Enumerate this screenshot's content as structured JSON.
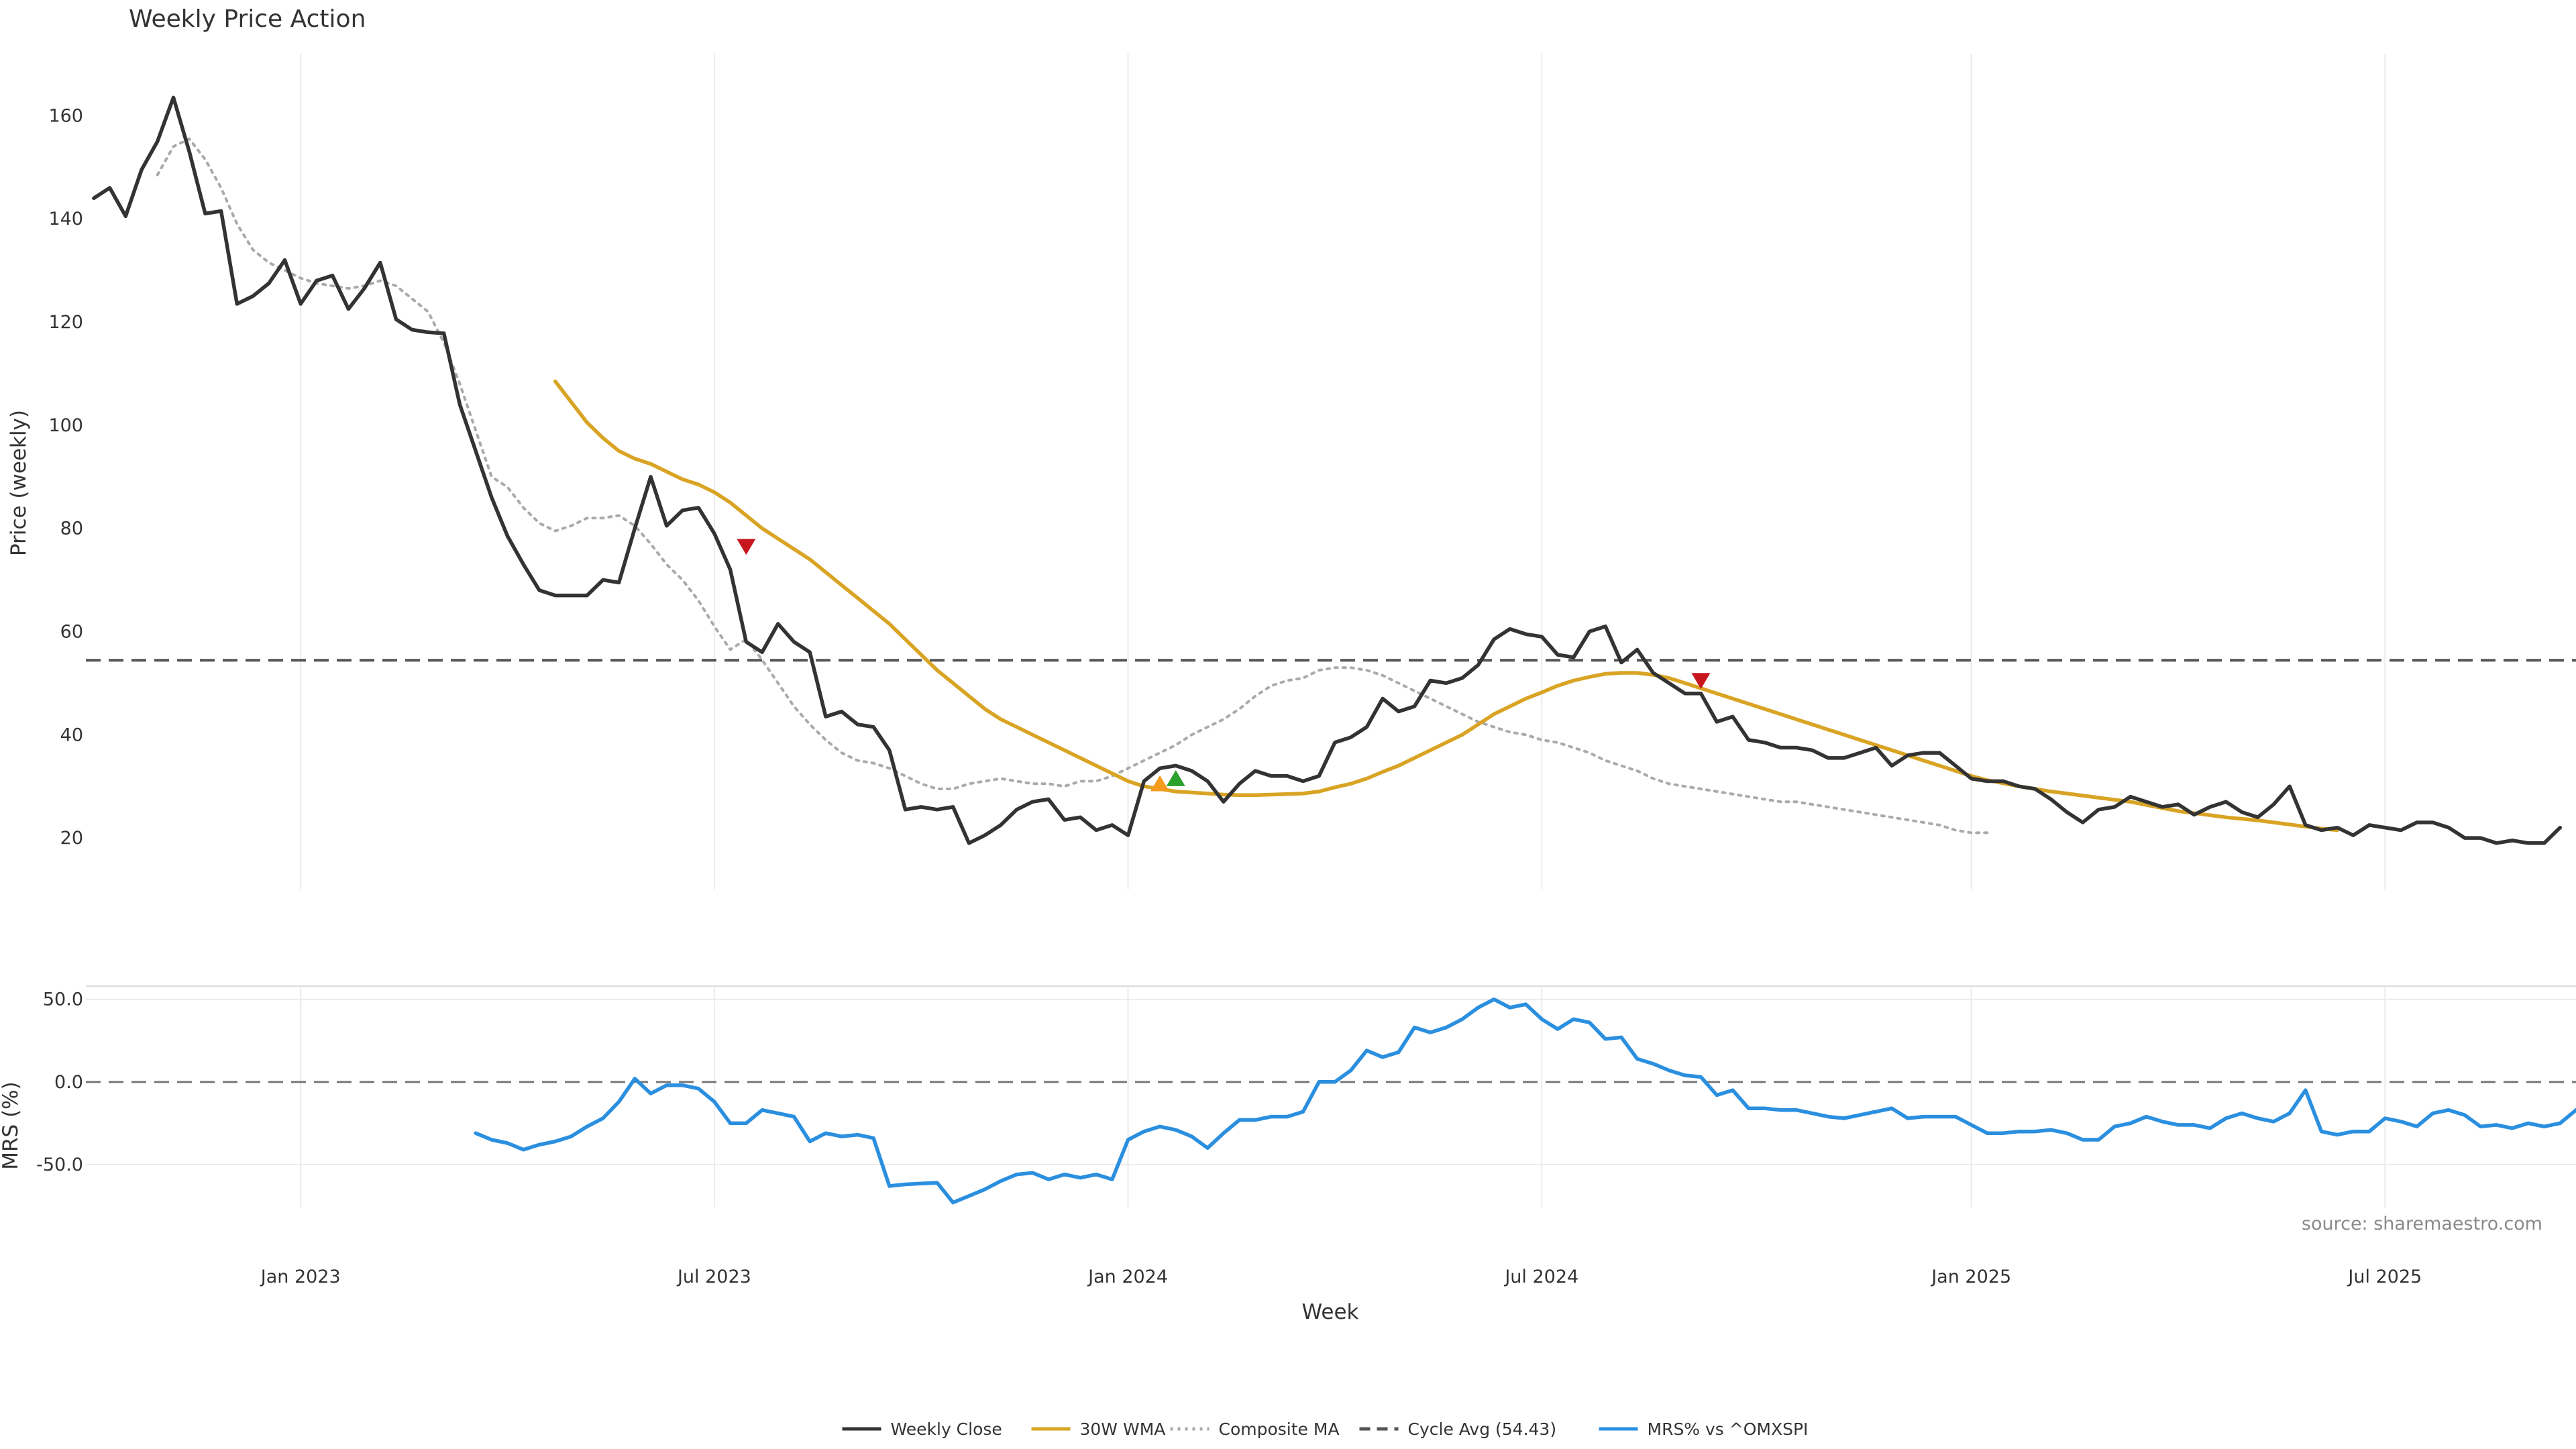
{
  "chart_data": {
    "type": "line",
    "title": "Weekly Price Action",
    "xlabel": "Week",
    "x_ticks": [
      {
        "label": "Jan 2023",
        "week": 13
      },
      {
        "label": "Jul 2023",
        "week": 39
      },
      {
        "label": "Jan 2024",
        "week": 65
      },
      {
        "label": "Jul 2024",
        "week": 91
      },
      {
        "label": "Jan 2025",
        "week": 118
      },
      {
        "label": "Jul 2025",
        "week": 144
      }
    ],
    "x_range": [
      -0.5,
      156
    ],
    "panels": {
      "price": {
        "ylabel": "Price (weekly)",
        "ylim": [
          10,
          172
        ],
        "yticks": [
          {
            "label": "20",
            "value": 20
          },
          {
            "label": "40",
            "value": 40
          },
          {
            "label": "60",
            "value": 60
          },
          {
            "label": "80",
            "value": 80
          },
          {
            "label": "100",
            "value": 100
          },
          {
            "label": "120",
            "value": 120
          },
          {
            "label": "140",
            "value": 140
          },
          {
            "label": "160",
            "value": 160
          }
        ]
      },
      "mrs": {
        "ylabel": "MRS (%)",
        "ylim": [
          -76,
          58
        ],
        "yticks": [
          {
            "label": "50.0",
            "value": 50
          },
          {
            "label": "0.0",
            "value": 0
          },
          {
            "label": "-50.0",
            "value": -50
          }
        ]
      }
    },
    "series": [
      {
        "name": "Weekly Close",
        "panel": "price",
        "style": "solid",
        "color": "#333333",
        "start_week": 0,
        "values": [
          144,
          146,
          140.5,
          149.5,
          155,
          163.5,
          153,
          141,
          141.5,
          123.5,
          125,
          127.5,
          132,
          123.5,
          128,
          129,
          122.5,
          126.5,
          131.5,
          120.5,
          118.5,
          118,
          117.8,
          104,
          95,
          86,
          78.5,
          73,
          68,
          67,
          67,
          67,
          70,
          69.5,
          80,
          90,
          80.5,
          83.5,
          84,
          79,
          72,
          58,
          56,
          61.5,
          58,
          56,
          43.5,
          44.5,
          42,
          41.5,
          37,
          25.5,
          26,
          25.5,
          26,
          19,
          20.5,
          22.5,
          25.5,
          27,
          27.5,
          23.5,
          24,
          21.5,
          22.5,
          20.5,
          31,
          33.5,
          34,
          33,
          31,
          27,
          30.5,
          33,
          32,
          32,
          31,
          32,
          38.5,
          39.5,
          41.5,
          47,
          44.5,
          45.5,
          50.5,
          50,
          51,
          53.5,
          58.5,
          60.5,
          59.5,
          59,
          55.5,
          55,
          60,
          61,
          54,
          56.5,
          52,
          50,
          48,
          48,
          42.5,
          43.5,
          39,
          38.5,
          37.5,
          37.5,
          37,
          35.5,
          35.5,
          36.5,
          37.5,
          34,
          36,
          36.5,
          36.5,
          34,
          31.5,
          31,
          31,
          30,
          29.5,
          27.5,
          25,
          23,
          25.5,
          26,
          28,
          27,
          26,
          26.5,
          24.5,
          26,
          27,
          25,
          24,
          26.5,
          30,
          22.5,
          21.5,
          22,
          20.5,
          22.5,
          22,
          21.5,
          23,
          23,
          22,
          20,
          20,
          19,
          19.5,
          19,
          19,
          22
        ]
      },
      {
        "name": "30W WMA",
        "panel": "price",
        "style": "solid",
        "color": "#d9a424",
        "start_week": 29,
        "values": [
          108.5,
          104.5,
          100.5,
          97.5,
          95,
          93.5,
          92.5,
          91,
          89.5,
          88.5,
          87,
          85,
          82.5,
          80,
          78,
          76,
          74,
          71.5,
          69,
          66.5,
          64,
          61.5,
          58.5,
          55.5,
          52.5,
          50,
          47.5,
          45,
          43,
          41.5,
          40,
          38.5,
          37,
          35.5,
          34,
          32.5,
          31,
          30,
          29.5,
          29,
          28.8,
          28.6,
          28.4,
          28.3,
          28.3,
          28.4,
          28.5,
          28.6,
          29,
          29.8,
          30.5,
          31.5,
          32.8,
          34,
          35.5,
          37,
          38.5,
          40,
          42,
          44,
          45.5,
          47,
          48.2,
          49.5,
          50.5,
          51.2,
          51.8,
          52,
          52,
          51.6,
          51,
          50,
          49,
          48,
          47,
          46,
          45,
          44,
          43,
          42,
          41,
          40,
          39,
          38,
          37,
          36,
          35,
          34,
          33,
          32,
          31.2,
          30.6,
          30,
          29.5,
          29,
          28.6,
          28.2,
          27.8,
          27.4,
          27,
          26.4,
          25.8,
          25.2,
          24.8,
          24.4,
          24,
          23.7,
          23.4,
          23,
          22.6,
          22.2,
          21.8,
          21.5
        ]
      },
      {
        "name": "Composite MA",
        "panel": "price",
        "style": "dotted",
        "color": "#aaaaaa",
        "start_week": 4,
        "values": [
          148.5,
          154,
          155.5,
          151.5,
          146,
          139,
          134,
          131.5,
          130,
          128.5,
          127.5,
          127,
          126.5,
          127,
          128,
          127,
          124.5,
          122,
          116,
          108,
          99,
          90,
          88,
          84,
          81,
          79.5,
          80.5,
          82,
          82,
          82.5,
          80.5,
          77,
          73,
          70,
          66,
          61,
          56.5,
          58.5,
          54.5,
          50,
          45.5,
          42,
          39,
          36.5,
          35,
          34.5,
          33.5,
          32,
          30.5,
          29.5,
          29.5,
          30.5,
          31,
          31.5,
          31,
          30.5,
          30.5,
          30,
          31,
          31,
          32,
          33.5,
          35,
          36.5,
          38,
          40,
          41.5,
          43,
          45,
          47.5,
          49.5,
          50.5,
          51,
          52.5,
          53,
          53,
          52.5,
          51.5,
          50,
          48.5,
          47,
          45.5,
          44,
          42.5,
          41.5,
          40.5,
          40,
          39,
          38.5,
          37.5,
          36.5,
          35,
          34,
          33,
          31.5,
          30.5,
          30,
          29.5,
          29,
          28.5,
          28,
          27.5,
          27,
          27,
          26.5,
          26,
          25.5,
          25,
          24.5,
          24,
          23.5,
          23,
          22.5,
          21.5,
          21,
          21
        ]
      },
      {
        "name": "Cycle Avg (54.43)",
        "panel": "price",
        "style": "dashed",
        "color": "#555555",
        "value": 54.43
      },
      {
        "name": "MRS% vs ^OMXSPI",
        "panel": "mrs",
        "style": "solid",
        "color": "#2b8fdf",
        "start_week": 24,
        "values": [
          -31,
          -35,
          -37,
          -41,
          -38,
          -36,
          -33,
          -27,
          -22,
          -12,
          2,
          -7,
          -2,
          -2,
          -4,
          -12,
          -25,
          -25,
          -17,
          -19,
          -21,
          -36,
          -31,
          -33,
          -32,
          -34,
          -63,
          -62,
          -61.5,
          -61,
          -73,
          -69,
          -65,
          -60,
          -56,
          -55,
          -59,
          -56,
          -58,
          -56,
          -59,
          -35,
          -30,
          -27,
          -29,
          -33,
          -40,
          -31,
          -23,
          -23,
          -21,
          -21,
          -18,
          0,
          0,
          7,
          19,
          15,
          18,
          33,
          30,
          33,
          38,
          45,
          50,
          45,
          47,
          38,
          32,
          38,
          36,
          26,
          27,
          14,
          11,
          7,
          4,
          3,
          -8,
          -5,
          -16,
          -16,
          -17,
          -17,
          -19,
          -21,
          -22,
          -20,
          -18,
          -16,
          -22,
          -21,
          -21,
          -21,
          -26,
          -31,
          -31,
          -30,
          -30,
          -29,
          -31,
          -35,
          -35,
          -27,
          -25,
          -21,
          -24,
          -26,
          -26,
          -28,
          -22,
          -19,
          -22,
          -24,
          -19,
          -5,
          -30,
          -32,
          -30,
          -30,
          -22,
          -24,
          -27,
          -19,
          -17,
          -20,
          -27,
          -26,
          -28,
          -25,
          -27,
          -25,
          -17
        ]
      }
    ],
    "markers": [
      {
        "type": "sell",
        "color": "#c8161d",
        "week": 41,
        "value": 76.5
      },
      {
        "type": "buy",
        "color": "#f59a1c",
        "week": 67,
        "value": 30.5
      },
      {
        "type": "buy",
        "color": "#2ca02c",
        "week": 68,
        "value": 31.5
      },
      {
        "type": "sell",
        "color": "#c8161d",
        "week": 101,
        "value": 50.5
      }
    ],
    "annotations": [
      {
        "text": "source: sharemaestro.com"
      }
    ],
    "legend": {
      "position": "bottom-center",
      "entries": [
        {
          "label": "Weekly Close",
          "style": "solid",
          "color": "#333333"
        },
        {
          "label": "30W WMA",
          "style": "solid",
          "color": "#d9a424"
        },
        {
          "label": "Composite MA",
          "style": "dotted",
          "color": "#aaaaaa"
        },
        {
          "label": "Cycle Avg (54.43)",
          "style": "dashed",
          "color": "#555555"
        },
        {
          "label": "MRS% vs ^OMXSPI",
          "style": "solid",
          "color": "#2b8fdf"
        }
      ]
    }
  }
}
